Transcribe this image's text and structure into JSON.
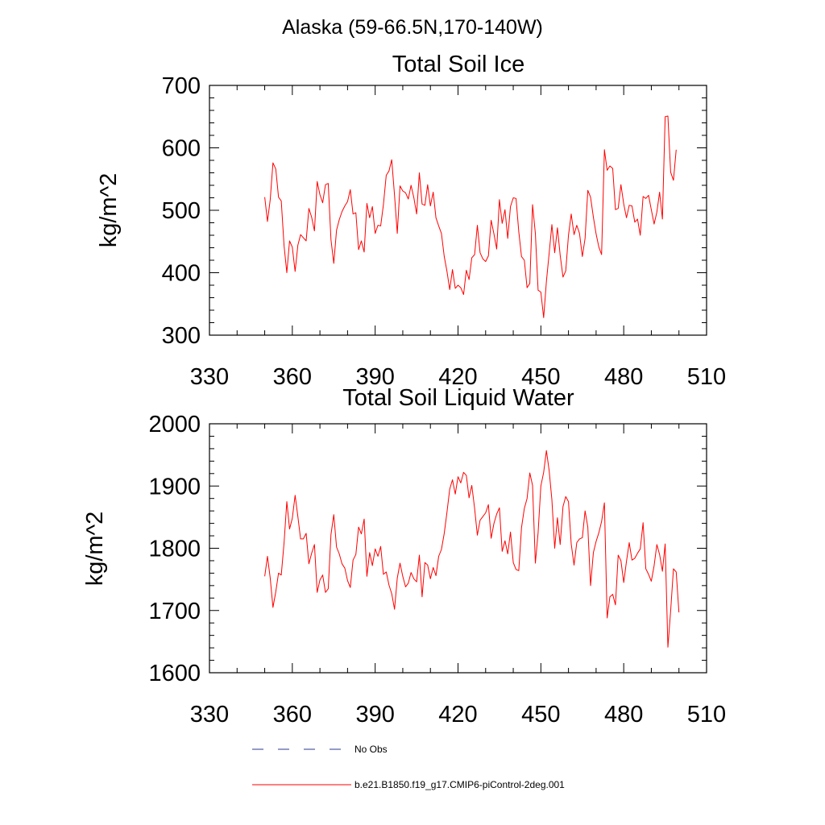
{
  "figure": {
    "title": "Alaska (59-66.5N,170-140W)"
  },
  "colors": {
    "model": "#ff0000",
    "obs": "#2b3a8c",
    "axis": "#000000"
  },
  "chart_data": [
    {
      "type": "line",
      "title": "Total Soil Ice",
      "xlabel": "",
      "ylabel": "kg/m^2",
      "xlim": [
        330,
        510
      ],
      "ylim": [
        300,
        700
      ],
      "xticks": [
        330,
        360,
        390,
        420,
        450,
        480,
        510
      ],
      "yticks": [
        300,
        400,
        500,
        600,
        700
      ],
      "grid": false,
      "series": [
        {
          "name": "b.e21.B1850.f19_g17.CMIP6-piControl-2deg.001",
          "x_start": 350,
          "x_step": 1,
          "values": [
            521,
            482,
            517,
            576,
            566,
            521,
            515,
            443,
            400,
            451,
            441,
            402,
            444,
            461,
            456,
            451,
            503,
            489,
            467,
            546,
            525,
            512,
            541,
            543,
            453,
            415,
            468,
            485,
            498,
            507,
            514,
            533,
            494,
            496,
            437,
            451,
            433,
            511,
            488,
            506,
            463,
            476,
            475,
            509,
            556,
            563,
            581,
            524,
            463,
            539,
            531,
            528,
            518,
            540,
            520,
            494,
            560,
            510,
            508,
            541,
            507,
            529,
            488,
            475,
            463,
            426,
            402,
            373,
            405,
            375,
            380,
            376,
            365,
            404,
            389,
            424,
            429,
            476,
            432,
            422,
            418,
            427,
            484,
            462,
            438,
            517,
            479,
            501,
            455,
            506,
            520,
            519,
            466,
            426,
            420,
            376,
            383,
            509,
            463,
            372,
            369,
            328,
            386,
            431,
            477,
            432,
            472,
            428,
            393,
            403,
            460,
            494,
            461,
            476,
            463,
            426,
            455,
            532,
            521,
            489,
            462,
            441,
            429,
            597,
            564,
            571,
            567,
            501,
            503,
            541,
            510,
            488,
            508,
            507,
            481,
            486,
            460,
            522,
            519,
            524,
            501,
            478,
            497,
            529,
            486,
            650,
            651,
            561,
            548,
            597
          ]
        }
      ]
    },
    {
      "type": "line",
      "title": "Total Soil Liquid Water",
      "xlabel": "",
      "ylabel": "kg/m^2",
      "xlim": [
        330,
        510
      ],
      "ylim": [
        1600,
        2000
      ],
      "xticks": [
        330,
        360,
        390,
        420,
        450,
        480,
        510
      ],
      "yticks": [
        1600,
        1700,
        1800,
        1900,
        2000
      ],
      "grid": false,
      "series": [
        {
          "name": "b.e21.B1850.f19_g17.CMIP6-piControl-2deg.001",
          "x_start": 350,
          "x_step": 1,
          "values": [
            1755,
            1787,
            1752,
            1705,
            1730,
            1760,
            1757,
            1809,
            1875,
            1831,
            1848,
            1885,
            1851,
            1815,
            1815,
            1824,
            1775,
            1792,
            1806,
            1729,
            1749,
            1757,
            1729,
            1735,
            1822,
            1854,
            1802,
            1791,
            1775,
            1768,
            1748,
            1737,
            1781,
            1790,
            1834,
            1823,
            1847,
            1755,
            1793,
            1772,
            1799,
            1787,
            1803,
            1758,
            1762,
            1741,
            1727,
            1702,
            1752,
            1776,
            1755,
            1738,
            1744,
            1761,
            1751,
            1746,
            1789,
            1722,
            1777,
            1773,
            1751,
            1769,
            1756,
            1787,
            1798,
            1824,
            1858,
            1895,
            1910,
            1887,
            1915,
            1905,
            1922,
            1917,
            1881,
            1901,
            1864,
            1821,
            1845,
            1851,
            1857,
            1870,
            1816,
            1840,
            1855,
            1865,
            1795,
            1812,
            1791,
            1826,
            1777,
            1766,
            1764,
            1833,
            1864,
            1880,
            1921,
            1901,
            1776,
            1825,
            1900,
            1922,
            1957,
            1925,
            1878,
            1800,
            1849,
            1806,
            1867,
            1883,
            1875,
            1807,
            1773,
            1809,
            1815,
            1817,
            1860,
            1834,
            1740,
            1793,
            1811,
            1825,
            1843,
            1873,
            1688,
            1722,
            1726,
            1709,
            1789,
            1780,
            1745,
            1779,
            1809,
            1781,
            1784,
            1792,
            1799,
            1841,
            1767,
            1758,
            1747,
            1772,
            1806,
            1790,
            1763,
            1807,
            1641,
            1699,
            1767,
            1762,
            1697
          ]
        }
      ]
    }
  ],
  "legend": {
    "entries": [
      {
        "label": "No Obs",
        "style": "dashed",
        "color": "#2b3a8c"
      },
      {
        "label": "b.e21.B1850.f19_g17.CMIP6-piControl-2deg.001",
        "style": "solid",
        "color": "#ff0000"
      }
    ]
  }
}
